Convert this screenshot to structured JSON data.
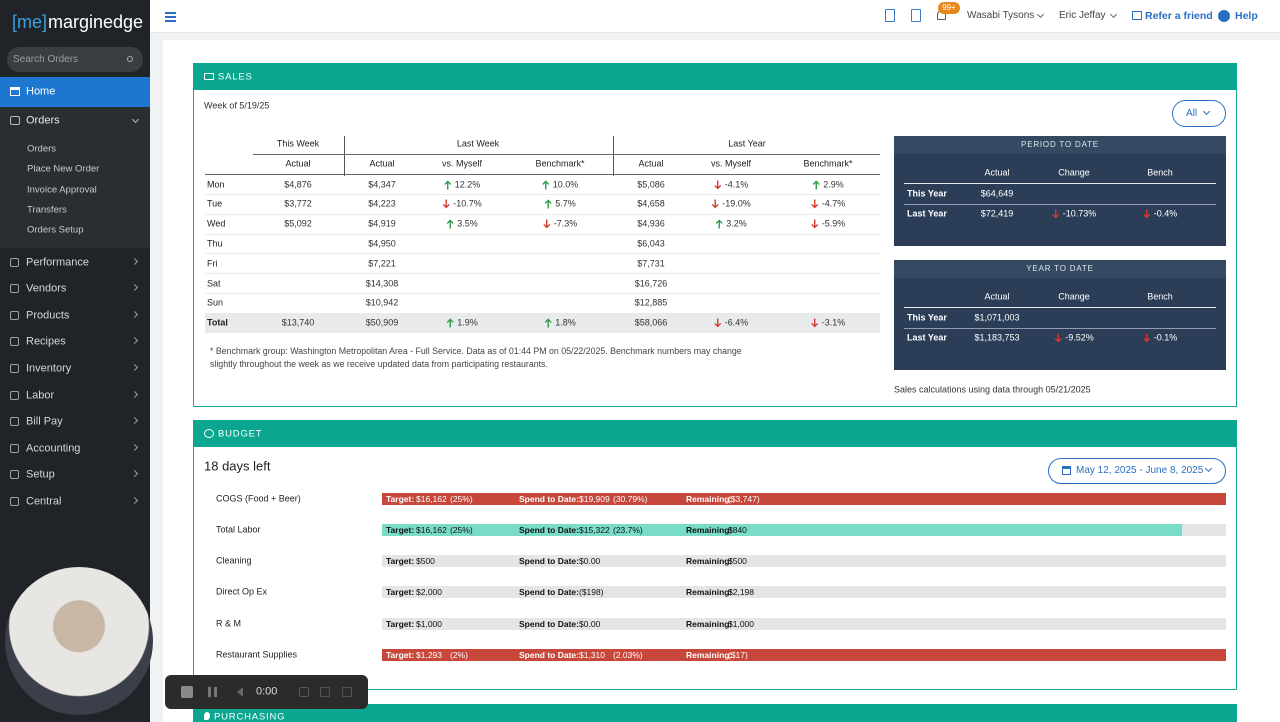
{
  "sidebar": {
    "logo_bracket": "[me]",
    "logo_text": "marginedge",
    "search_placeholder": "Search Orders",
    "home": "Home",
    "orders": "Orders",
    "orders_sub": [
      "Orders",
      "Place New Order",
      "Invoice Approval",
      "Transfers",
      "Orders Setup"
    ],
    "items": [
      "Performance",
      "Vendors",
      "Products",
      "Recipes",
      "Inventory",
      "Labor",
      "Bill Pay",
      "Accounting",
      "Setup",
      "Central"
    ]
  },
  "topbar": {
    "notification_count": "99+",
    "location": "Wasabi Tysons",
    "user": "Eric Jeffay",
    "refer": "Refer a friend",
    "help": "Help"
  },
  "sales": {
    "title": "SALES",
    "week": "Week of 5/19/25",
    "filter": "All",
    "groups": [
      "This Week",
      "Last Week",
      "Last Year"
    ],
    "columns": [
      "Actual",
      "Actual",
      "vs. Myself",
      "Benchmark*",
      "Actual",
      "vs. Myself",
      "Benchmark*"
    ],
    "rows": [
      [
        "Mon",
        "$4,876",
        "$4,347",
        "12.2%",
        "10.0%",
        "$5,086",
        "-4.1%",
        "2.9%"
      ],
      [
        "Tue",
        "$3,772",
        "$4,223",
        "-10.7%",
        "5.7%",
        "$4,658",
        "-19.0%",
        "-4.7%"
      ],
      [
        "Wed",
        "$5,092",
        "$4,919",
        "3.5%",
        "-7.3%",
        "$4,936",
        "3.2%",
        "-5.9%"
      ],
      [
        "Thu",
        null,
        "$4,950",
        null,
        null,
        "$6,043",
        null,
        null
      ],
      [
        "Fri",
        null,
        "$7,221",
        null,
        null,
        "$7,731",
        null,
        null
      ],
      [
        "Sat",
        null,
        "$14,308",
        null,
        null,
        "$16,726",
        null,
        null
      ],
      [
        "Sun",
        null,
        "$10,942",
        null,
        null,
        "$12,885",
        null,
        null
      ],
      [
        "Total",
        "$13,740",
        "$50,909",
        "1.9%",
        "1.8%",
        "$58,066",
        "-6.4%",
        "-3.1%"
      ]
    ],
    "footnote": "* Benchmark group: Washington Metropolitan Area - Full Service. Data as of 01:44 PM on 05/22/2025. Benchmark numbers may change slightly throughout the week as we receive updated data from participating restaurants.",
    "period_to_date": {
      "title": "PERIOD TO DATE",
      "columns": [
        "Actual",
        "Change",
        "Bench"
      ],
      "rows": [
        [
          "This Year",
          "$64,649",
          null,
          null
        ],
        [
          "Last Year",
          "$72,419",
          "-10.73%",
          "-0.4%"
        ]
      ]
    },
    "year_to_date": {
      "title": "YEAR TO DATE",
      "columns": [
        "Actual",
        "Change",
        "Bench"
      ],
      "rows": [
        [
          "This Year",
          "$1,071,003",
          null,
          null
        ],
        [
          "Last Year",
          "$1,183,753",
          "-9.52%",
          "-0.1%"
        ]
      ]
    },
    "calc_note": "Sales calculations using data through 05/21/2025"
  },
  "budget": {
    "title": "BUDGET",
    "days_left": "18 days left",
    "date_range": "May 12, 2025 - June 8, 2025",
    "target_label": "Target:",
    "spend_label": "Spend to Date:",
    "remaining_label": "Remaining:",
    "items": [
      {
        "name": "COGS (Food + Beer)",
        "target": "$16,162",
        "target_pct": "(25%)",
        "spend": "$19,909",
        "spend_pct": "(30.79%)",
        "remaining": "($3,747)"
      },
      {
        "name": "Total Labor",
        "target": "$16,162",
        "target_pct": "(25%)",
        "spend": "$15,322",
        "spend_pct": "(23.7%)",
        "remaining": "$840"
      },
      {
        "name": "Cleaning",
        "target": "$500",
        "target_pct": null,
        "spend": "$0.00",
        "spend_pct": null,
        "remaining": "$500"
      },
      {
        "name": "Direct Op Ex",
        "target": "$2,000",
        "target_pct": null,
        "spend": "($198)",
        "spend_pct": null,
        "remaining": "$2,198"
      },
      {
        "name": "R & M",
        "target": "$1,000",
        "target_pct": null,
        "spend": "$0.00",
        "spend_pct": null,
        "remaining": "$1,000"
      },
      {
        "name": "Restaurant Supplies",
        "target": "$1,293",
        "target_pct": "(2%)",
        "spend": "$1,310",
        "spend_pct": "(2.03%)",
        "remaining": "($17)"
      }
    ]
  },
  "purchasing": {
    "title": "PURCHASING"
  },
  "recorder": {
    "time": "0:00"
  }
}
